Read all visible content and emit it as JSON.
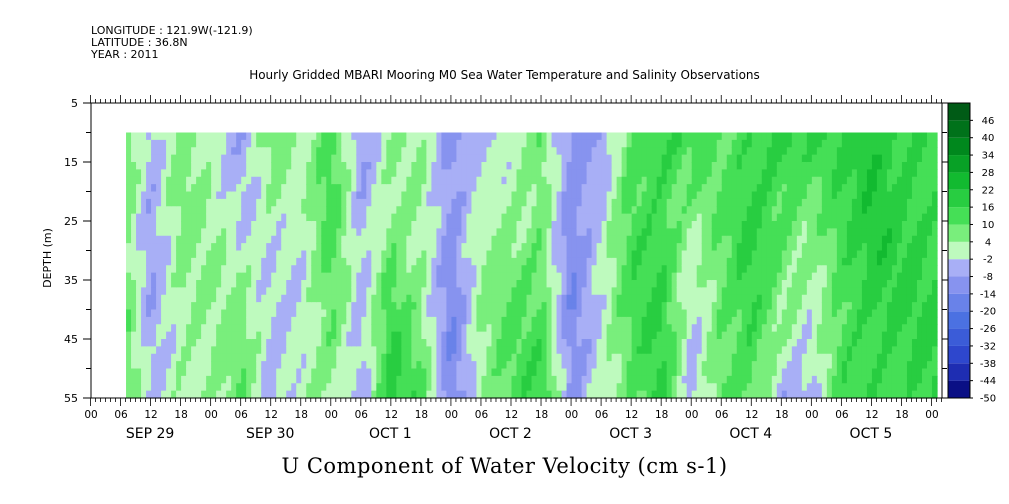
{
  "header": {
    "longitude": "LONGITUDE : 121.9W(-121.9)",
    "latitude": "LATITUDE : 36.8N",
    "year": "YEAR : 2011"
  },
  "chart_data": {
    "type": "heatmap",
    "title": "Hourly Gridded MBARI Mooring M0 Sea Water Temperature and Salinity Observations",
    "xlabel": "U Component of Water Velocity (cm s-1)",
    "ylabel": "DEPTH (m)",
    "ylim": [
      55,
      5
    ],
    "y_ticks": [
      5,
      15,
      25,
      35,
      45,
      55
    ],
    "data_depth_range": [
      10,
      55
    ],
    "x_hour_ticks": [
      "00",
      "06",
      "12",
      "18",
      "00",
      "06",
      "12",
      "18",
      "00",
      "06",
      "12",
      "18",
      "00",
      "06",
      "12",
      "18",
      "00",
      "06",
      "12",
      "18",
      "00",
      "06",
      "12",
      "18",
      "00",
      "06",
      "12",
      "18",
      "00"
    ],
    "x_day_labels": [
      "SEP 29",
      "SEP 30",
      "OCT  1",
      "OCT  2",
      "OCT  3",
      "OCT  4",
      "OCT  5"
    ],
    "data_start_hour": 7,
    "data_end_hour": 169,
    "colorbar_levels": [
      46,
      40,
      34,
      28,
      22,
      16,
      10,
      4,
      -2,
      -8,
      -14,
      -20,
      -26,
      -32,
      -38,
      -44,
      -50
    ],
    "colorbar_range": [
      -50,
      52
    ],
    "grid": false,
    "legend": "colorbar-right",
    "column_profiles_hourly": {
      "hours": [
        7,
        12,
        18,
        24,
        30,
        36,
        42,
        48,
        54,
        60,
        66,
        72,
        78,
        84,
        90,
        96,
        102,
        108,
        114,
        120,
        126,
        132,
        138,
        144,
        150,
        156,
        162,
        168
      ],
      "surface_cm_s": [
        10,
        -8,
        6,
        2,
        -6,
        8,
        -2,
        14,
        -6,
        4,
        2,
        -12,
        -2,
        2,
        8,
        -14,
        -8,
        14,
        16,
        12,
        8,
        16,
        20,
        16,
        14,
        20,
        18,
        16
      ],
      "bottom_cm_s": [
        8,
        -4,
        4,
        4,
        10,
        -8,
        2,
        8,
        -6,
        18,
        10,
        -12,
        6,
        12,
        14,
        -10,
        4,
        10,
        16,
        -8,
        12,
        14,
        -6,
        -8,
        14,
        16,
        14,
        16
      ]
    }
  }
}
